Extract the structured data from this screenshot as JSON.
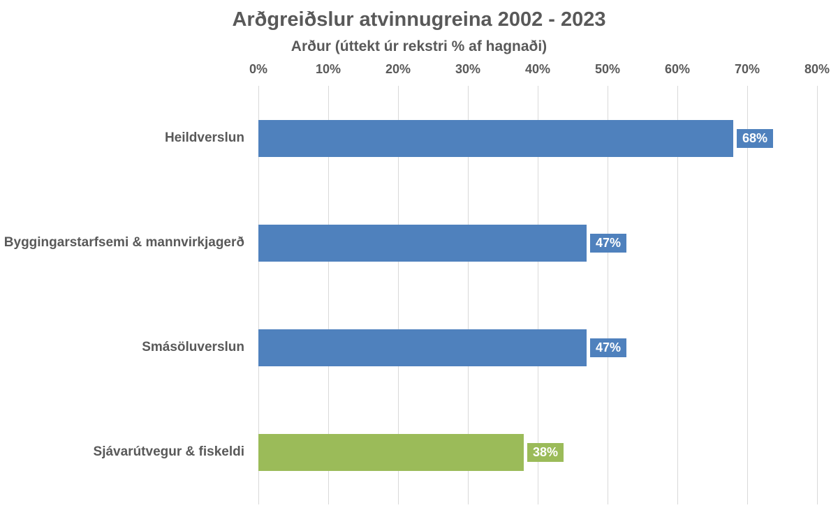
{
  "chart_data": {
    "type": "bar",
    "orientation": "horizontal",
    "title": "Arðgreiðslur atvinnugreina 2002 - 2023",
    "subtitle": "Arður (úttekt úr rekstri % af hagnaði)",
    "categories": [
      "Heildverslun",
      "Byggingarstarfsemi & mannvirkjagerð",
      "Smásöluverslun",
      "Sjávarútvegur & fiskeldi"
    ],
    "values": [
      68,
      47,
      47,
      38
    ],
    "value_labels": [
      "68%",
      "47%",
      "47%",
      "38%"
    ],
    "bar_colors": [
      "#4F81BD",
      "#4F81BD",
      "#4F81BD",
      "#9BBB59"
    ],
    "x_tick_labels": [
      "0%",
      "10%",
      "20%",
      "30%",
      "40%",
      "50%",
      "60%",
      "70%",
      "80%"
    ],
    "x_tick_values": [
      0,
      10,
      20,
      30,
      40,
      50,
      60,
      70,
      80
    ],
    "xlim": [
      0,
      80
    ],
    "grid": "vertical",
    "legend": "none",
    "gridline_color": "#D9D9D9",
    "text_color": "#595959",
    "background_color": "#FFFFFF"
  }
}
